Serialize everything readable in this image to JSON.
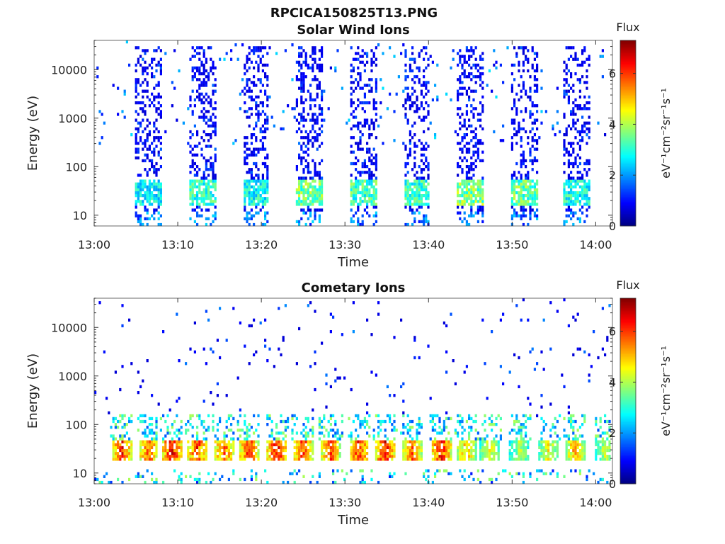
{
  "figure_title": "RPCICA150825T13.PNG",
  "chart_data": [
    {
      "type": "heatmap",
      "title": "Solar Wind Ions",
      "xlabel": "Time",
      "ylabel": "Energy (eV)",
      "x_ticks": [
        "13:00",
        "13:10",
        "13:20",
        "13:30",
        "13:40",
        "13:50",
        "14:00"
      ],
      "x_range_minutes": [
        0,
        62
      ],
      "y_scale": "log",
      "y_ticks": [
        10,
        100,
        1000,
        10000
      ],
      "y_range": [
        6,
        40000
      ],
      "colorbar": {
        "label": "Flux",
        "units": "eV⁻¹cm⁻²sr⁻¹s⁻¹",
        "range": [
          0,
          7.3
        ],
        "ticks": [
          0,
          2,
          4,
          6
        ],
        "colormap": "jet"
      },
      "scan_start_minutes": [
        5.0,
        11.4,
        17.8,
        24.2,
        30.6,
        37.0,
        43.4,
        49.8,
        56.2
      ],
      "scan_duration_minutes": 3.2,
      "peak_energy_eV": 30,
      "peak_flux": [
        3.3,
        3.8,
        3.5,
        4.4,
        4.0,
        3.9,
        4.5,
        4.3,
        3.6
      ],
      "background_flux": 0.6,
      "grid": false
    },
    {
      "type": "heatmap",
      "title": "Cometary Ions",
      "xlabel": "Time",
      "ylabel": "Energy (eV)",
      "x_ticks": [
        "13:00",
        "13:10",
        "13:20",
        "13:30",
        "13:40",
        "13:50",
        "14:00"
      ],
      "x_range_minutes": [
        0,
        62
      ],
      "y_scale": "log",
      "y_ticks": [
        10,
        100,
        1000,
        10000
      ],
      "y_range": [
        6,
        40000
      ],
      "colorbar": {
        "label": "Flux",
        "units": "eV⁻¹cm⁻²sr⁻¹s⁻¹",
        "range": [
          0,
          7.3
        ],
        "ticks": [
          0,
          2,
          4,
          6
        ],
        "colormap": "jet"
      },
      "burst_center_minutes": [
        3.3,
        6.5,
        9.3,
        12.3,
        15.5,
        18.5,
        21.9,
        25.0,
        28.3,
        31.7,
        34.8,
        38.0,
        41.5,
        44.5,
        47.3,
        50.9,
        54.4,
        57.5,
        61.2
      ],
      "burst_peak_flux": [
        7.0,
        6.6,
        7.3,
        6.9,
        6.6,
        6.8,
        7.3,
        6.8,
        6.6,
        6.9,
        7.2,
        6.5,
        7.1,
        5.8,
        5.0,
        4.6,
        5.2,
        5.8,
        4.8
      ],
      "peak_energy_eV": 28,
      "background_flux": 0.6,
      "grid": false
    }
  ]
}
